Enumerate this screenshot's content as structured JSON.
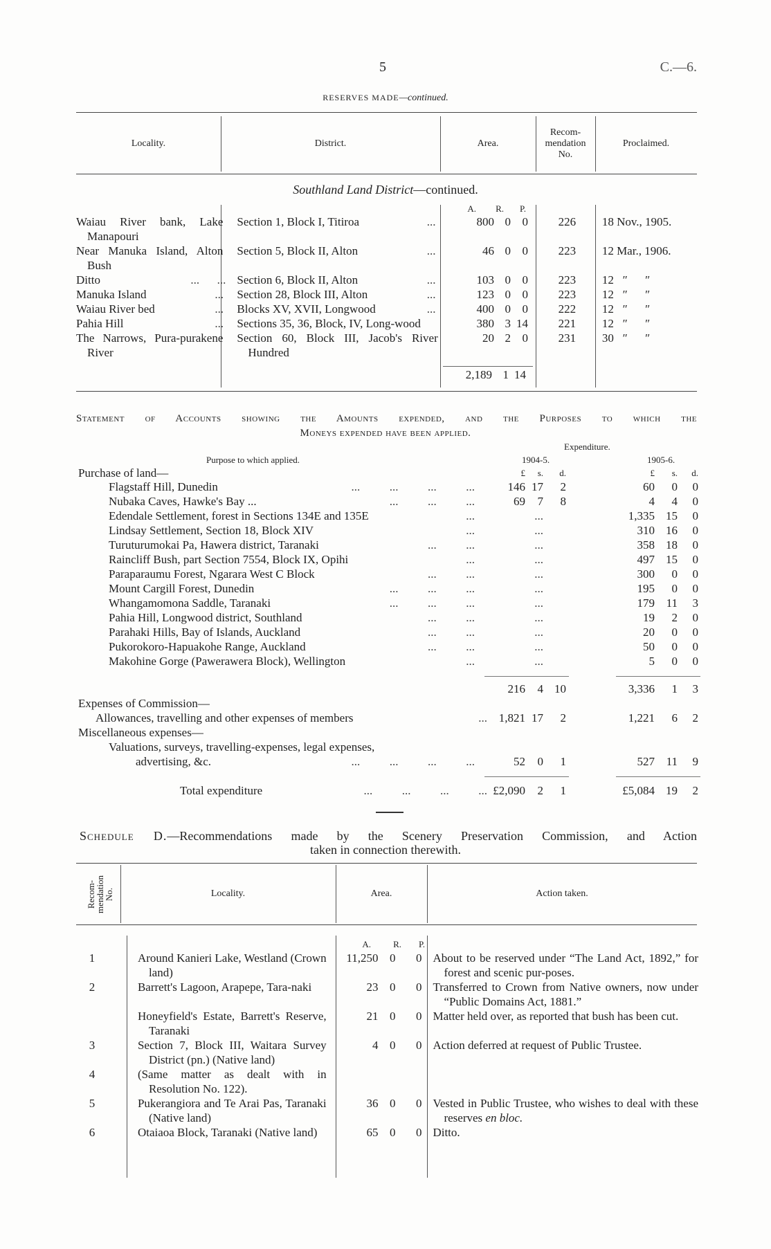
{
  "header": {
    "page_number": "5",
    "doc_code": "C.—6."
  },
  "reserves": {
    "title": "Reserves made",
    "title_suffix": "—continued.",
    "columns": [
      "Locality.",
      "District.",
      "Area.",
      "Recom-mendation No.",
      "Proclaimed."
    ],
    "subtitle_italic": "Southland Land District",
    "subtitle_rest": "—continued.",
    "area_units": [
      "A.",
      "R.",
      "P."
    ],
    "rows": [
      {
        "locality": "Waiau River bank, Lake Manapouri",
        "loc_leader": "",
        "district": "Section 1, Block I, Titiroa",
        "dist_leader": "...",
        "a": "800",
        "r": "0",
        "p": "0",
        "rec": "226",
        "proclaimed": "18 Nov., 1905."
      },
      {
        "locality": "Near Manuka Island, Alton Bush",
        "loc_leader": "",
        "district": "Section 5, Block II, Alton",
        "dist_leader": "...",
        "a": "46",
        "r": "0",
        "p": "0",
        "rec": "223",
        "proclaimed": "12 Mar., 1906."
      },
      {
        "locality": "Ditto",
        "loc_leader": "...      ...",
        "district": "Section 6, Block II, Alton",
        "dist_leader": "...",
        "a": "103",
        "r": "0",
        "p": "0",
        "rec": "223",
        "proclaimed": "12   ″      ″"
      },
      {
        "locality": "Manuka Island",
        "loc_leader": "...",
        "district": "Section 28, Block III, Alton",
        "dist_leader": "...",
        "a": "123",
        "r": "0",
        "p": "0",
        "rec": "223",
        "proclaimed": "12   ″      ″"
      },
      {
        "locality": "Waiau River bed",
        "loc_leader": "...",
        "district": "Blocks XV, XVII, Longwood",
        "dist_leader": "...",
        "a": "400",
        "r": "0",
        "p": "0",
        "rec": "222",
        "proclaimed": "12   ″      ″"
      },
      {
        "locality": "Pahia Hill",
        "loc_leader": "...",
        "district": "Sections 35, 36, Block, IV, Long-wood",
        "dist_leader": "",
        "a": "380",
        "r": "3",
        "p": "14",
        "rec": "221",
        "proclaimed": "12   ″      ″"
      },
      {
        "locality": "The Narrows, Pura-purakene River",
        "loc_leader": "",
        "district": "Section 60, Block III, Jacob's River Hundred",
        "dist_leader": "",
        "a": "20",
        "r": "2",
        "p": "0",
        "rec": "231",
        "proclaimed": "30   ″      ″"
      }
    ],
    "total": {
      "a": "2,189",
      "r": "1",
      "p": "14"
    }
  },
  "accounts": {
    "title_line1": "Statement of Accounts showing the Amounts expended, and the Purposes to which the",
    "title_line2": "Moneys expended have been applied.",
    "expenditure_label": "Expenditure.",
    "purpose_header": "Purpose to which applied.",
    "year1": "1904-5.",
    "year2": "1905-6.",
    "units": [
      "£",
      "s.",
      "d."
    ],
    "purchase_heading": "Purchase of land—",
    "purchases": [
      {
        "purpose": "Flagstaff Hill, Dunedin",
        "leader": "...          ...          ...          ...",
        "y1": [
          "146",
          "17",
          "2"
        ],
        "y2": [
          "60",
          "0",
          "0"
        ]
      },
      {
        "purpose": "Nubaka Caves, Hawke's Bay ...",
        "leader": "...          ...          ...",
        "y1": [
          "69",
          "7",
          "8"
        ],
        "y2": [
          "4",
          "4",
          "0"
        ]
      },
      {
        "purpose": "Edendale Settlement, forest in Sections 134E and 135E",
        "leader": "...",
        "y1": [
          "...",
          "",
          ""
        ],
        "y2": [
          "1,335",
          "15",
          "0"
        ]
      },
      {
        "purpose": "Lindsay Settlement, Section 18, Block XIV",
        "leader": "...",
        "y1": [
          "...",
          "",
          ""
        ],
        "y2": [
          "310",
          "16",
          "0"
        ]
      },
      {
        "purpose": "Turuturumokai Pa, Hawera district, Taranaki",
        "leader": "...          ...",
        "y1": [
          "...",
          "",
          ""
        ],
        "y2": [
          "358",
          "18",
          "0"
        ]
      },
      {
        "purpose": "Raincliff Bush, part Section 7554, Block IX, Opihi",
        "leader": "...",
        "y1": [
          "...",
          "",
          ""
        ],
        "y2": [
          "497",
          "15",
          "0"
        ]
      },
      {
        "purpose": "Paraparaumu Forest, Ngarara West C Block",
        "leader": "...          ...",
        "y1": [
          "...",
          "",
          ""
        ],
        "y2": [
          "300",
          "0",
          "0"
        ]
      },
      {
        "purpose": "Mount Cargill Forest, Dunedin",
        "leader": "...          ...          ...",
        "y1": [
          "...",
          "",
          ""
        ],
        "y2": [
          "195",
          "0",
          "0"
        ]
      },
      {
        "purpose": "Whangamomona Saddle, Taranaki",
        "leader": "...          ...          ...",
        "y1": [
          "...",
          "",
          ""
        ],
        "y2": [
          "179",
          "11",
          "3"
        ]
      },
      {
        "purpose": "Pahia Hill, Longwood district, Southland",
        "leader": "...          ...",
        "y1": [
          "...",
          "",
          ""
        ],
        "y2": [
          "19",
          "2",
          "0"
        ]
      },
      {
        "purpose": "Parahaki Hills, Bay of Islands, Auckland",
        "leader": "...          ...",
        "y1": [
          "...",
          "",
          ""
        ],
        "y2": [
          "20",
          "0",
          "0"
        ]
      },
      {
        "purpose": "Pukorokoro-Hapuakohe Range, Auckland",
        "leader": "...          ...",
        "y1": [
          "...",
          "",
          ""
        ],
        "y2": [
          "50",
          "0",
          "0"
        ]
      },
      {
        "purpose": "Makohine Gorge (Pawerawera Block), Wellington",
        "leader": "...",
        "y1": [
          "...",
          "",
          ""
        ],
        "y2": [
          "5",
          "0",
          "0"
        ]
      }
    ],
    "subtotal": {
      "y1": [
        "216",
        "4",
        "10"
      ],
      "y2": [
        "3,336",
        "1",
        "3"
      ]
    },
    "commission_heading": "Expenses of Commission—",
    "commission": {
      "purpose": "Allowances, travelling and other expenses of members",
      "leader": "...",
      "y1": [
        "1,821",
        "17",
        "2"
      ],
      "y2": [
        "1,221",
        "6",
        "2"
      ]
    },
    "misc_heading": "Miscellaneous expenses—",
    "misc": {
      "purpose_line1": "Valuations, surveys, travelling-expenses, legal expenses,",
      "purpose_line2": "advertising, &c.",
      "leader": "...          ...          ...          ...",
      "y1": [
        "52",
        "0",
        "1"
      ],
      "y2": [
        "527",
        "11",
        "9"
      ]
    },
    "total": {
      "label": "Total expenditure",
      "leader": "...          ...          ...          ...",
      "y1": [
        "£2,090",
        "2",
        "1"
      ],
      "y2": [
        "£5,084",
        "19",
        "2"
      ]
    }
  },
  "schedule": {
    "title_sc": "Schedule D.",
    "title_rest": "—Recommendations made by the Scenery Preservation Commission, and Action",
    "title_line2": "taken in connection therewith.",
    "columns": [
      "Recom-mendation No.",
      "Locality.",
      "Area.",
      "Action taken."
    ],
    "area_units": [
      "A.",
      "R.",
      "P."
    ],
    "rows": [
      {
        "no": "1",
        "locality": "Around Kanieri Lake, Westland (Crown land)",
        "a": "11,250",
        "r": "0",
        "p": "0",
        "action": "About to be reserved under “The Land Act, 1892,” for forest and scenic pur-poses.",
        "action_italic": ""
      },
      {
        "no": "2",
        "locality": "Barrett's Lagoon, Arapepe, Tara-naki",
        "a": "23",
        "r": "0",
        "p": "0",
        "action": "Transferred to Crown from Native owners, now under “Public Domains Act, 1881.”",
        "action_italic": ""
      },
      {
        "no": "",
        "locality": "Honeyfield's Estate, Barrett's Reserve, Taranaki",
        "a": "21",
        "r": "0",
        "p": "0",
        "action": "Matter held over, as reported that bush has been cut.",
        "action_italic": ""
      },
      {
        "no": "3",
        "locality": "Section 7, Block III, Waitara Survey District (pn.) (Native land)",
        "a": "4",
        "r": "0",
        "p": "0",
        "action": "Action deferred at request of Public Trustee.",
        "action_italic": ""
      },
      {
        "no": "4",
        "locality": "(Same matter as dealt with in Resolution No. 122).",
        "a": "",
        "r": "",
        "p": "",
        "action": "",
        "action_italic": ""
      },
      {
        "no": "5",
        "locality": "Pukerangiora and Te Arai Pas, Taranaki (Native land)",
        "a": "36",
        "r": "0",
        "p": "0",
        "action": "Vested in Public Trustee, who wishes to deal with these reserves ",
        "action_italic": "en bloc."
      },
      {
        "no": "6",
        "locality": "Otaiaoa Block, Taranaki (Native land)",
        "a": "65",
        "r": "0",
        "p": "0",
        "action": "Ditto.",
        "action_italic": ""
      }
    ]
  }
}
